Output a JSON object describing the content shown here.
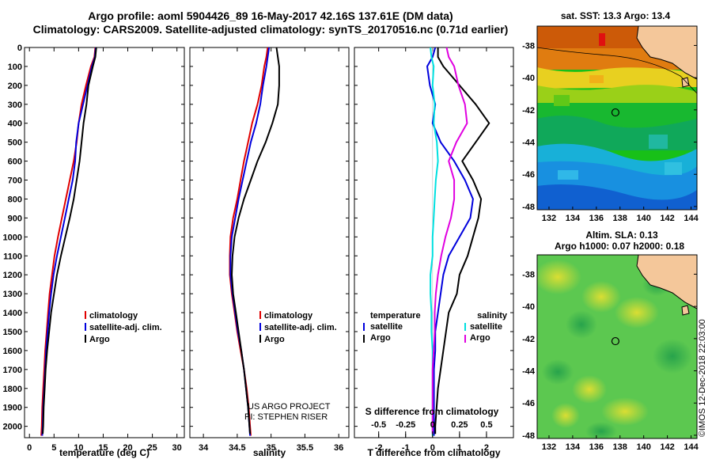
{
  "header": {
    "title_line1": "Argo profile: aoml 5904426_89 16-May-2017 42.16S 137.61E (DM data)",
    "title_line2": "Climatology: CARS2009. Satellite-adjusted climatology: synTS_20170516.nc (0.71d earlier)"
  },
  "colors": {
    "climatology": "#e00000",
    "satellite": "#0000dd",
    "argo": "#000000",
    "sat_salinity": "#00e0e0",
    "argo_salinity": "#e000e0",
    "land": "#f4c79a"
  },
  "legend": {
    "climatology": "climatology",
    "satellite_adj": "satellite-adj. clim.",
    "argo": "Argo",
    "temperature": "temperature",
    "salinity": "salinity",
    "satellite": "satellite"
  },
  "credits": {
    "line1": "US ARGO PROJECT",
    "line2": "PI: STEPHEN RISER"
  },
  "imos_stamp": "©IMOS 12-Dec-2018 22:03:00",
  "maps": {
    "sst_title": "sat. SST: 13.3 Argo: 13.4",
    "sla_title_line1": "Altim. SLA: 0.13",
    "sla_title_line2": "Argo h1000: 0.07 h2000: 0.18",
    "lon_ticks": [
      "132",
      "134",
      "136",
      "138",
      "140",
      "142",
      "144"
    ],
    "lat_ticks": [
      "-38",
      "-40",
      "-42",
      "-44",
      "-46",
      "-48"
    ],
    "float_position": {
      "lon": 137.61,
      "lat": -42.16
    },
    "lon_range": [
      131,
      144.5
    ],
    "lat_range": [
      -48.2,
      -36.8
    ]
  },
  "depth_ticks": [
    "0",
    "100",
    "200",
    "300",
    "400",
    "500",
    "600",
    "700",
    "800",
    "900",
    "1000",
    "1100",
    "1200",
    "1300",
    "1400",
    "1500",
    "1600",
    "1700",
    "1800",
    "1900",
    "2000"
  ],
  "chart_data": [
    {
      "type": "line",
      "xlabel": "temperature (deg C)",
      "x_ticks": [
        "0",
        "5",
        "10",
        "15",
        "20",
        "25",
        "30"
      ],
      "xlim": [
        -1,
        31.5
      ],
      "ylim": [
        0,
        2060
      ],
      "y_inverted": true,
      "series": [
        {
          "name": "climatology",
          "points": [
            [
              13.4,
              0
            ],
            [
              13.2,
              50
            ],
            [
              12.5,
              100
            ],
            [
              11.5,
              200
            ],
            [
              10.6,
              300
            ],
            [
              10.0,
              400
            ],
            [
              9.6,
              500
            ],
            [
              9.0,
              600
            ],
            [
              8.2,
              700
            ],
            [
              7.4,
              800
            ],
            [
              6.6,
              900
            ],
            [
              5.8,
              1000
            ],
            [
              5.1,
              1100
            ],
            [
              4.6,
              1200
            ],
            [
              4.1,
              1300
            ],
            [
              3.8,
              1400
            ],
            [
              3.5,
              1500
            ],
            [
              3.2,
              1600
            ],
            [
              3.0,
              1700
            ],
            [
              2.8,
              1800
            ],
            [
              2.6,
              1900
            ],
            [
              2.5,
              2000
            ],
            [
              2.4,
              2050
            ]
          ]
        },
        {
          "name": "satellite-adj. clim.",
          "points": [
            [
              13.5,
              0
            ],
            [
              13.3,
              50
            ],
            [
              12.7,
              100
            ],
            [
              11.8,
              200
            ],
            [
              10.9,
              300
            ],
            [
              10.0,
              400
            ],
            [
              9.5,
              500
            ],
            [
              9.3,
              600
            ],
            [
              8.8,
              700
            ],
            [
              8.0,
              800
            ],
            [
              7.2,
              900
            ],
            [
              6.4,
              1000
            ],
            [
              5.6,
              1100
            ],
            [
              4.9,
              1200
            ],
            [
              4.4,
              1300
            ],
            [
              4.0,
              1400
            ],
            [
              3.7,
              1500
            ],
            [
              3.4,
              1600
            ],
            [
              3.2,
              1700
            ],
            [
              3.0,
              1800
            ],
            [
              2.8,
              1900
            ],
            [
              2.7,
              2000
            ],
            [
              2.6,
              2050
            ]
          ]
        },
        {
          "name": "Argo",
          "points": [
            [
              13.6,
              0
            ],
            [
              13.4,
              50
            ],
            [
              12.9,
              100
            ],
            [
              12.0,
              200
            ],
            [
              11.6,
              300
            ],
            [
              11.0,
              400
            ],
            [
              10.6,
              500
            ],
            [
              10.2,
              600
            ],
            [
              9.6,
              700
            ],
            [
              9.0,
              800
            ],
            [
              8.2,
              900
            ],
            [
              7.3,
              1000
            ],
            [
              6.4,
              1100
            ],
            [
              5.6,
              1200
            ],
            [
              5.0,
              1300
            ],
            [
              4.4,
              1400
            ],
            [
              4.0,
              1500
            ],
            [
              3.6,
              1600
            ],
            [
              3.3,
              1700
            ],
            [
              3.1,
              1800
            ],
            [
              2.9,
              1900
            ],
            [
              2.8,
              2000
            ],
            [
              2.7,
              2040
            ]
          ]
        }
      ]
    },
    {
      "type": "line",
      "xlabel": "salinity",
      "x_ticks": [
        "34",
        "34.5",
        "35",
        "35.5",
        "36"
      ],
      "xlim": [
        33.8,
        36.15
      ],
      "ylim": [
        0,
        2060
      ],
      "y_inverted": true,
      "series": [
        {
          "name": "climatology",
          "points": [
            [
              34.95,
              0
            ],
            [
              34.93,
              50
            ],
            [
              34.9,
              100
            ],
            [
              34.86,
              200
            ],
            [
              34.8,
              300
            ],
            [
              34.72,
              400
            ],
            [
              34.66,
              500
            ],
            [
              34.6,
              600
            ],
            [
              34.55,
              700
            ],
            [
              34.5,
              800
            ],
            [
              34.44,
              900
            ],
            [
              34.4,
              1000
            ],
            [
              34.39,
              1100
            ],
            [
              34.39,
              1200
            ],
            [
              34.42,
              1300
            ],
            [
              34.46,
              1400
            ],
            [
              34.5,
              1500
            ],
            [
              34.55,
              1600
            ],
            [
              34.6,
              1700
            ],
            [
              34.64,
              1800
            ],
            [
              34.67,
              1900
            ],
            [
              34.69,
              2000
            ],
            [
              34.7,
              2050
            ]
          ]
        },
        {
          "name": "satellite-adj. clim.",
          "points": [
            [
              34.97,
              0
            ],
            [
              34.95,
              50
            ],
            [
              34.93,
              100
            ],
            [
              34.88,
              200
            ],
            [
              34.84,
              300
            ],
            [
              34.78,
              400
            ],
            [
              34.7,
              500
            ],
            [
              34.64,
              600
            ],
            [
              34.58,
              700
            ],
            [
              34.52,
              800
            ],
            [
              34.47,
              900
            ],
            [
              34.42,
              1000
            ],
            [
              34.4,
              1100
            ],
            [
              34.4,
              1200
            ],
            [
              34.43,
              1300
            ],
            [
              34.47,
              1400
            ],
            [
              34.51,
              1500
            ],
            [
              34.56,
              1600
            ],
            [
              34.6,
              1700
            ],
            [
              34.63,
              1800
            ],
            [
              34.66,
              1900
            ],
            [
              34.68,
              2000
            ],
            [
              34.69,
              2050
            ]
          ]
        },
        {
          "name": "Argo",
          "points": [
            [
              35.08,
              0
            ],
            [
              35.1,
              50
            ],
            [
              35.12,
              100
            ],
            [
              35.12,
              200
            ],
            [
              35.1,
              300
            ],
            [
              35.02,
              400
            ],
            [
              34.92,
              500
            ],
            [
              34.8,
              600
            ],
            [
              34.7,
              700
            ],
            [
              34.6,
              800
            ],
            [
              34.52,
              900
            ],
            [
              34.46,
              1000
            ],
            [
              34.43,
              1100
            ],
            [
              34.42,
              1200
            ],
            [
              34.44,
              1300
            ],
            [
              34.48,
              1400
            ],
            [
              34.52,
              1500
            ],
            [
              34.56,
              1600
            ],
            [
              34.6,
              1700
            ],
            [
              34.63,
              1800
            ],
            [
              34.66,
              1900
            ],
            [
              34.68,
              2000
            ],
            [
              34.69,
              2040
            ]
          ]
        }
      ]
    },
    {
      "type": "line",
      "xlabel": "T difference from climatology",
      "x_ticks": [
        "-2",
        "-1",
        "0",
        "1",
        "2"
      ],
      "xlim": [
        -2.9,
        3.0
      ],
      "s_label": "S difference from climatology",
      "s_ticks": [
        "-0.5",
        "-0.25",
        "0",
        "0.25",
        "0.5"
      ],
      "s_scale": 4,
      "ylim": [
        0,
        2060
      ],
      "y_inverted": true,
      "series": [
        {
          "name": "temperature satellite",
          "points": [
            [
              0.1,
              0
            ],
            [
              0.0,
              50
            ],
            [
              -0.2,
              100
            ],
            [
              -0.1,
              200
            ],
            [
              0.1,
              300
            ],
            [
              0.0,
              400
            ],
            [
              0.3,
              500
            ],
            [
              0.8,
              600
            ],
            [
              1.2,
              700
            ],
            [
              1.5,
              800
            ],
            [
              1.4,
              900
            ],
            [
              1.0,
              1000
            ],
            [
              0.6,
              1100
            ],
            [
              0.4,
              1200
            ],
            [
              0.3,
              1300
            ],
            [
              0.2,
              1400
            ],
            [
              0.1,
              1500
            ],
            [
              0.1,
              1600
            ],
            [
              0.05,
              1700
            ],
            [
              0.05,
              1800
            ],
            [
              0.05,
              1900
            ],
            [
              0.05,
              2000
            ],
            [
              0.05,
              2050
            ]
          ]
        },
        {
          "name": "temperature Argo",
          "points": [
            [
              0.2,
              0
            ],
            [
              0.2,
              50
            ],
            [
              0.4,
              100
            ],
            [
              1.0,
              200
            ],
            [
              1.6,
              300
            ],
            [
              2.1,
              400
            ],
            [
              1.6,
              500
            ],
            [
              1.1,
              600
            ],
            [
              1.5,
              700
            ],
            [
              1.8,
              800
            ],
            [
              1.7,
              900
            ],
            [
              1.5,
              1000
            ],
            [
              1.3,
              1100
            ],
            [
              1.0,
              1200
            ],
            [
              0.9,
              1300
            ],
            [
              0.6,
              1400
            ],
            [
              0.5,
              1500
            ],
            [
              0.4,
              1600
            ],
            [
              0.3,
              1700
            ],
            [
              0.2,
              1800
            ],
            [
              0.15,
              1900
            ],
            [
              0.1,
              2000
            ],
            [
              0.1,
              2040
            ]
          ]
        },
        {
          "name": "salinity satellite",
          "points": [
            [
              -0.02,
              0
            ],
            [
              -0.01,
              50
            ],
            [
              0.01,
              100
            ],
            [
              0.0,
              200
            ],
            [
              0.02,
              300
            ],
            [
              0.01,
              400
            ],
            [
              0.04,
              500
            ],
            [
              0.05,
              600
            ],
            [
              0.03,
              700
            ],
            [
              0.02,
              800
            ],
            [
              0.01,
              900
            ],
            [
              0.0,
              1000
            ],
            [
              0.0,
              1100
            ],
            [
              -0.02,
              1200
            ],
            [
              -0.02,
              1300
            ],
            [
              -0.01,
              1400
            ],
            [
              -0.01,
              1500
            ],
            [
              0.0,
              1600
            ],
            [
              0.0,
              1700
            ],
            [
              0.0,
              1800
            ],
            [
              0.0,
              1900
            ],
            [
              0.0,
              2000
            ],
            [
              0.0,
              2050
            ]
          ]
        },
        {
          "name": "salinity Argo",
          "points": [
            [
              0.13,
              0
            ],
            [
              0.15,
              50
            ],
            [
              0.2,
              100
            ],
            [
              0.24,
              200
            ],
            [
              0.3,
              300
            ],
            [
              0.32,
              400
            ],
            [
              0.22,
              500
            ],
            [
              0.15,
              600
            ],
            [
              0.2,
              700
            ],
            [
              0.2,
              800
            ],
            [
              0.17,
              900
            ],
            [
              0.12,
              1000
            ],
            [
              0.08,
              1100
            ],
            [
              0.05,
              1200
            ],
            [
              0.03,
              1300
            ],
            [
              0.02,
              1400
            ],
            [
              0.02,
              1500
            ],
            [
              0.01,
              1600
            ],
            [
              0.0,
              1700
            ],
            [
              0.0,
              1800
            ],
            [
              0.0,
              1900
            ],
            [
              0.0,
              2000
            ],
            [
              0.0,
              2040
            ]
          ]
        }
      ]
    }
  ]
}
